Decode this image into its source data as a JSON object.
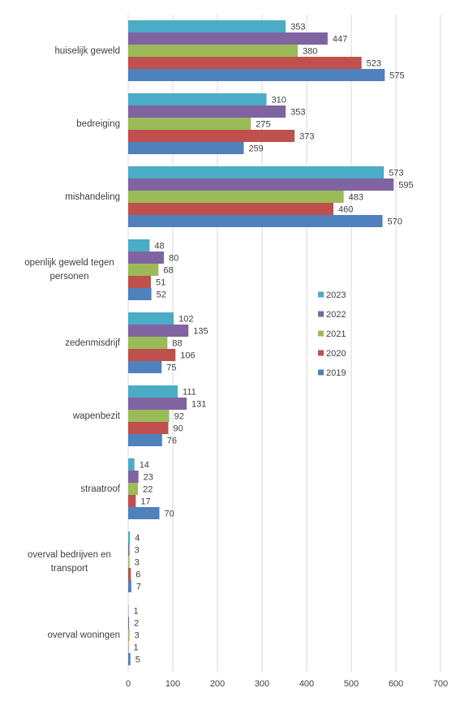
{
  "chart_data": {
    "type": "bar",
    "orientation": "horizontal",
    "categories": [
      "huiselijk geweld",
      "bedreiging",
      "mishandeling",
      "openlijk geweld tegen personen",
      "zedenmisdrijf",
      "wapenbezit",
      "straatroof",
      "overval bedrijven en transport",
      "overval woningen"
    ],
    "series": [
      {
        "name": "2023",
        "color": "#4bacc6",
        "values": [
          353,
          310,
          573,
          48,
          102,
          111,
          14,
          4,
          1
        ]
      },
      {
        "name": "2022",
        "color": "#8064a2",
        "values": [
          447,
          353,
          595,
          80,
          135,
          131,
          23,
          3,
          2
        ]
      },
      {
        "name": "2021",
        "color": "#9bbb59",
        "values": [
          380,
          275,
          483,
          68,
          88,
          92,
          22,
          3,
          3
        ]
      },
      {
        "name": "2020",
        "color": "#c0504d",
        "values": [
          523,
          373,
          460,
          51,
          106,
          90,
          17,
          6,
          1
        ]
      },
      {
        "name": "2019",
        "color": "#4f81bd",
        "values": [
          575,
          259,
          570,
          52,
          75,
          76,
          70,
          7,
          5
        ]
      }
    ],
    "xlim": [
      0,
      700
    ],
    "xticks": [
      0,
      100,
      200,
      300,
      400,
      500,
      600,
      700
    ],
    "grid": true,
    "legend_position": "center-right"
  }
}
